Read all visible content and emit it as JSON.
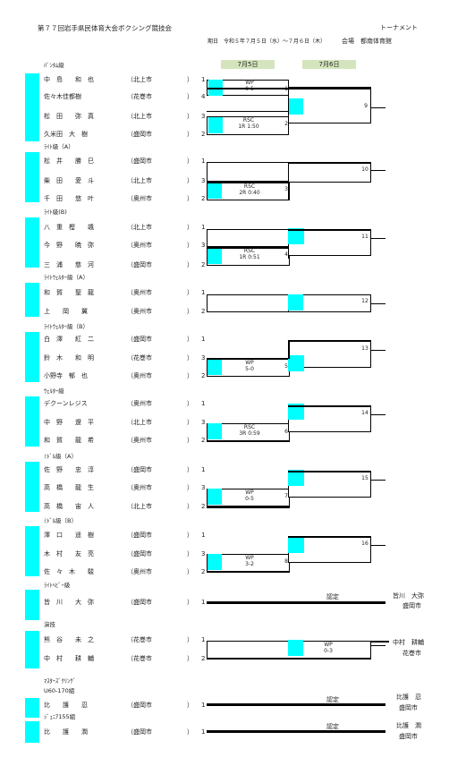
{
  "header": {
    "title": "第７７回岩手県民体育大会ボクシング競技会",
    "doc_type": "トーナメント",
    "dates_label": "期日　令和５年７月５日（水）～７月６日（木）",
    "venue_label": "会場　都南体育館",
    "day1": "7月5日",
    "day2": "7月6日"
  },
  "cats": {
    "bantam": "ﾊﾞﾝﾀﾑ級",
    "lightA": "ﾗｲﾄ級（A）",
    "lightB": "ﾗｲﾄ級(B)",
    "lwelterA": "ﾗｲﾄｳｪﾙﾀｰ級（A）",
    "lwelterB": "ﾗｲﾄｳｪﾙﾀｰ級（B）",
    "welter": "ｳｪﾙﾀｰ級",
    "middleA": "ﾐﾄﾞﾙ級（A）",
    "middleB": "ﾐﾄﾞﾙ級（B）",
    "lheavy": "ﾗｲﾄﾍﾋﾞｰ級",
    "engi": "演技",
    "masters": "ﾏｽﾀｰｽﾞｸﾘﾝｸﾞ",
    "u60": "U60-170組",
    "junior": "ｼﾞｭﾆｱ155組"
  },
  "p": {
    "b1": {
      "name": "中　島　　和　也",
      "team": "（北上市",
      "corner": "1"
    },
    "b2": {
      "name": "佐々木佳都樹",
      "team": "（花巻市",
      "corner": "4"
    },
    "b3": {
      "name": "松　田　　弥　真",
      "team": "（北上市",
      "corner": "3"
    },
    "b4": {
      "name": "久米田　大　樹",
      "team": "（盛岡市",
      "corner": "2"
    },
    "la1": {
      "name": "松　井　　勝　巳",
      "team": "（盛岡市",
      "corner": "1"
    },
    "la2": {
      "name": "柴　田　　愛　斗",
      "team": "（北上市",
      "corner": "3"
    },
    "la3": {
      "name": "千　田　　悠　叶",
      "team": "（奥州市",
      "corner": "2"
    },
    "lb1": {
      "name": "八　重　樫　　颯",
      "team": "（北上市",
      "corner": "1"
    },
    "lb2": {
      "name": "今　野　　暁　弥",
      "team": "（奥州市",
      "corner": "3"
    },
    "lb3": {
      "name": "三　浦　　慈　河",
      "team": "（盛岡市",
      "corner": "2"
    },
    "lwa1": {
      "name": "和　賀　　聖　龍",
      "team": "（奥州市",
      "corner": "1"
    },
    "lwa2": {
      "name": "上　　岡　　翼",
      "team": "（奥州市",
      "corner": "2"
    },
    "lwb1": {
      "name": "白　澤　　紅　二",
      "team": "（盛岡市",
      "corner": "1"
    },
    "lwb2": {
      "name": "鈴　木　　和　明",
      "team": "（花巻市",
      "corner": "3"
    },
    "lwb3": {
      "name": "小野寺　郁　也",
      "team": "（奥州市",
      "corner": "2"
    },
    "w1": {
      "name": "デクーンレジス",
      "team": "（奥州市",
      "corner": "1"
    },
    "w2": {
      "name": "中　野　　遼　平",
      "team": "（北上市",
      "corner": "3"
    },
    "w3": {
      "name": "和　賀　　龍　希",
      "team": "（奥州市",
      "corner": "2"
    },
    "ma1": {
      "name": "佐　野　　忠　淳",
      "team": "（盛岡市",
      "corner": "1"
    },
    "ma2": {
      "name": "高　橋　　龍　生",
      "team": "（奥州市",
      "corner": "3"
    },
    "ma3": {
      "name": "高　橋　　宙　人",
      "team": "（北上市",
      "corner": "2"
    },
    "mb1": {
      "name": "澤　口　　遥　樹",
      "team": "（盛岡市",
      "corner": "1"
    },
    "mb2": {
      "name": "木　村　　友　亮",
      "team": "（盛岡市",
      "corner": "3"
    },
    "mb3": {
      "name": "佐　々　木　　駿",
      "team": "（奥州市",
      "corner": "2"
    },
    "lh1": {
      "name": "皆　川　　大　弥",
      "team": "（盛岡市",
      "corner": "1"
    },
    "e1": {
      "name": "熊　谷　　未　之",
      "team": "（花巻市",
      "corner": "1"
    },
    "e2": {
      "name": "中　村　　耕　輔",
      "team": "（花巻市",
      "corner": "2"
    },
    "m1": {
      "name": "比　　護　　忍",
      "team": "（盛岡市",
      "corner": "1"
    },
    "j1": {
      "name": "比　　護　　潤",
      "team": "（盛岡市",
      "corner": "1"
    }
  },
  "close_paren": "）",
  "results": {
    "b_r1a": "WP\n0-5",
    "b_r1b": "RSC\n1R 1:50",
    "la_r1": "RSC\n2R 0:40",
    "lb_r1": "RSC\n1R 0:51",
    "lwb_r1": "WP\n5-0",
    "w_r1": "RSC\n3R 0:59",
    "ma_r1": "WP\n0-5",
    "mb_r1": "WP\n3-2",
    "engi": "WP\n0-3",
    "nintei": "認定"
  },
  "bouts": {
    "b1": "1",
    "b2": "2",
    "la": "3",
    "lb": "4",
    "lwb": "5",
    "w": "6",
    "ma": "7",
    "mb": "8",
    "f9": "9",
    "f10": "10",
    "f11": "11",
    "f12": "12",
    "f13": "13",
    "f14": "14",
    "f15": "15",
    "f16": "16"
  },
  "winners": {
    "lh_name": "皆川　大弥",
    "lh_team": "盛岡市",
    "e_name": "中村　耕輔",
    "e_team": "花巻市",
    "m_name": "比護　忍",
    "m_team": "盛岡市",
    "j_name": "比護　潤",
    "j_team": "盛岡市"
  }
}
